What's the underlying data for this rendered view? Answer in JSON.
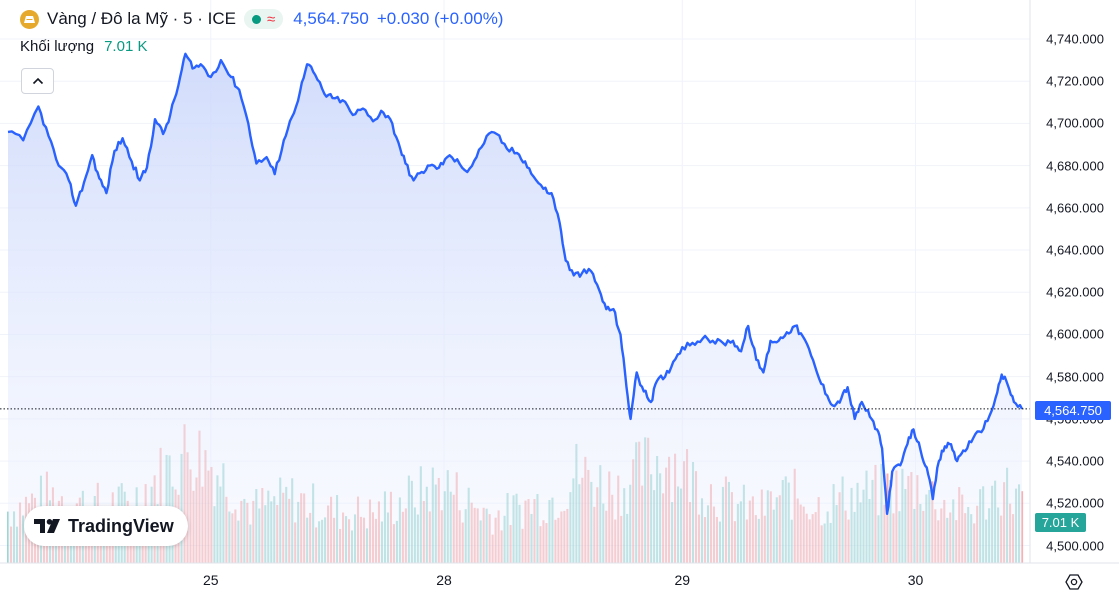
{
  "header": {
    "symbol_title": "Vàng / Đô la Mỹ · 5 · ICE",
    "last_price": "4,564.750",
    "change": "+0.030 (+0.00%)",
    "status_wave": "≈",
    "volume_label": "Khối lượng",
    "volume_value": "7.01 K",
    "logo_text": "TradingView"
  },
  "colors": {
    "line": "#2962ff",
    "area_top": "#c9d6fb",
    "area_bottom": "#f2f5ff",
    "volume_up": "#26a69a",
    "volume_down": "#ef5350",
    "price_tag": "#2962ff",
    "volume_tag": "#26a69a"
  },
  "chart_data": {
    "type": "area",
    "title": "",
    "xlabel": "",
    "ylabel": "",
    "ylim": [
      4496,
      4746
    ],
    "x_ticks": [
      {
        "label": "25",
        "t": 0.2
      },
      {
        "label": "28",
        "t": 0.43
      },
      {
        "label": "29",
        "t": 0.665
      },
      {
        "label": "30",
        "t": 0.895
      }
    ],
    "y_ticks": [
      "4,740.000",
      "4,720.000",
      "4,700.000",
      "4,680.000",
      "4,660.000",
      "4,640.000",
      "4,620.000",
      "4,600.000",
      "4,580.000",
      "4,560.000",
      "4,540.000",
      "4,520.000",
      "4,500.000"
    ],
    "y_tick_values": [
      4740,
      4720,
      4700,
      4680,
      4660,
      4640,
      4620,
      4600,
      4580,
      4560,
      4540,
      4520,
      4500
    ],
    "last_price_value": 4564.75,
    "last_price_label": "4,564.750",
    "volume_last_label": "7.01 K",
    "grid": true,
    "price_series": {
      "name": "",
      "points": [
        [
          0.0,
          4696
        ],
        [
          0.015,
          4692
        ],
        [
          0.03,
          4708
        ],
        [
          0.04,
          4694
        ],
        [
          0.05,
          4680
        ],
        [
          0.06,
          4673
        ],
        [
          0.067,
          4661
        ],
        [
          0.075,
          4672
        ],
        [
          0.083,
          4685
        ],
        [
          0.09,
          4674
        ],
        [
          0.097,
          4667
        ],
        [
          0.105,
          4687
        ],
        [
          0.113,
          4693
        ],
        [
          0.122,
          4682
        ],
        [
          0.13,
          4673
        ],
        [
          0.137,
          4679
        ],
        [
          0.145,
          4702
        ],
        [
          0.153,
          4695
        ],
        [
          0.16,
          4704
        ],
        [
          0.168,
          4718
        ],
        [
          0.175,
          4733
        ],
        [
          0.182,
          4726
        ],
        [
          0.19,
          4728
        ],
        [
          0.2,
          4722
        ],
        [
          0.21,
          4730
        ],
        [
          0.22,
          4722
        ],
        [
          0.228,
          4716
        ],
        [
          0.237,
          4700
        ],
        [
          0.245,
          4681
        ],
        [
          0.255,
          4684
        ],
        [
          0.263,
          4676
        ],
        [
          0.272,
          4692
        ],
        [
          0.28,
          4703
        ],
        [
          0.288,
          4715
        ],
        [
          0.295,
          4728
        ],
        [
          0.303,
          4723
        ],
        [
          0.312,
          4714
        ],
        [
          0.32,
          4712
        ],
        [
          0.33,
          4711
        ],
        [
          0.34,
          4704
        ],
        [
          0.35,
          4707
        ],
        [
          0.36,
          4701
        ],
        [
          0.368,
          4706
        ],
        [
          0.377,
          4702
        ],
        [
          0.385,
          4691
        ],
        [
          0.392,
          4681
        ],
        [
          0.4,
          4673
        ],
        [
          0.408,
          4677
        ],
        [
          0.416,
          4680
        ],
        [
          0.425,
          4679
        ],
        [
          0.433,
          4684
        ],
        [
          0.443,
          4683
        ],
        [
          0.453,
          4677
        ],
        [
          0.462,
          4684
        ],
        [
          0.472,
          4694
        ],
        [
          0.482,
          4695
        ],
        [
          0.492,
          4688
        ],
        [
          0.502,
          4686
        ],
        [
          0.51,
          4682
        ],
        [
          0.518,
          4675
        ],
        [
          0.528,
          4669
        ],
        [
          0.536,
          4667
        ],
        [
          0.544,
          4653
        ],
        [
          0.55,
          4635
        ],
        [
          0.558,
          4628
        ],
        [
          0.566,
          4629
        ],
        [
          0.575,
          4630
        ],
        [
          0.583,
          4621
        ],
        [
          0.59,
          4612
        ],
        [
          0.597,
          4612
        ],
        [
          0.604,
          4600
        ],
        [
          0.61,
          4575
        ],
        [
          0.614,
          4560
        ],
        [
          0.62,
          4582
        ],
        [
          0.627,
          4573
        ],
        [
          0.634,
          4568
        ],
        [
          0.64,
          4578
        ],
        [
          0.648,
          4580
        ],
        [
          0.656,
          4587
        ],
        [
          0.665,
          4594
        ],
        [
          0.675,
          4596
        ],
        [
          0.685,
          4598
        ],
        [
          0.695,
          4597
        ],
        [
          0.705,
          4596
        ],
        [
          0.715,
          4597
        ],
        [
          0.723,
          4592
        ],
        [
          0.73,
          4604
        ],
        [
          0.738,
          4588
        ],
        [
          0.745,
          4582
        ],
        [
          0.752,
          4597
        ],
        [
          0.76,
          4597
        ],
        [
          0.768,
          4601
        ],
        [
          0.776,
          4604
        ],
        [
          0.784,
          4599
        ],
        [
          0.792,
          4590
        ],
        [
          0.8,
          4579
        ],
        [
          0.808,
          4571
        ],
        [
          0.815,
          4566
        ],
        [
          0.822,
          4570
        ],
        [
          0.828,
          4575
        ],
        [
          0.835,
          4560
        ],
        [
          0.842,
          4568
        ],
        [
          0.85,
          4561
        ],
        [
          0.857,
          4555
        ],
        [
          0.862,
          4546
        ],
        [
          0.867,
          4515
        ],
        [
          0.872,
          4535
        ],
        [
          0.88,
          4538
        ],
        [
          0.887,
          4548
        ],
        [
          0.893,
          4555
        ],
        [
          0.9,
          4545
        ],
        [
          0.906,
          4537
        ],
        [
          0.912,
          4522
        ],
        [
          0.918,
          4540
        ],
        [
          0.924,
          4547
        ],
        [
          0.93,
          4548
        ],
        [
          0.936,
          4540
        ],
        [
          0.942,
          4545
        ],
        [
          0.95,
          4549
        ],
        [
          0.958,
          4554
        ],
        [
          0.966,
          4559
        ],
        [
          0.974,
          4570
        ],
        [
          0.98,
          4581
        ],
        [
          0.986,
          4576
        ],
        [
          0.992,
          4568
        ],
        [
          1.0,
          4564.75
        ]
      ]
    },
    "volume_series": {
      "name": "",
      "axis_units": "relative",
      "relative_profile": [
        [
          0.0,
          0.4
        ],
        [
          0.04,
          0.52
        ],
        [
          0.08,
          0.45
        ],
        [
          0.12,
          0.46
        ],
        [
          0.16,
          0.74
        ],
        [
          0.18,
          0.88
        ],
        [
          0.2,
          0.76
        ],
        [
          0.24,
          0.42
        ],
        [
          0.28,
          0.5
        ],
        [
          0.32,
          0.4
        ],
        [
          0.36,
          0.38
        ],
        [
          0.4,
          0.52
        ],
        [
          0.43,
          0.62
        ],
        [
          0.45,
          0.48
        ],
        [
          0.48,
          0.36
        ],
        [
          0.51,
          0.44
        ],
        [
          0.54,
          0.5
        ],
        [
          0.56,
          0.7
        ],
        [
          0.6,
          0.56
        ],
        [
          0.63,
          0.74
        ],
        [
          0.65,
          0.82
        ],
        [
          0.68,
          0.62
        ],
        [
          0.71,
          0.48
        ],
        [
          0.74,
          0.4
        ],
        [
          0.77,
          0.54
        ],
        [
          0.8,
          0.44
        ],
        [
          0.83,
          0.52
        ],
        [
          0.86,
          0.55
        ],
        [
          0.88,
          0.58
        ],
        [
          0.9,
          0.6
        ],
        [
          0.92,
          0.46
        ],
        [
          0.95,
          0.4
        ],
        [
          0.98,
          0.6
        ],
        [
          1.0,
          0.48
        ]
      ]
    }
  }
}
